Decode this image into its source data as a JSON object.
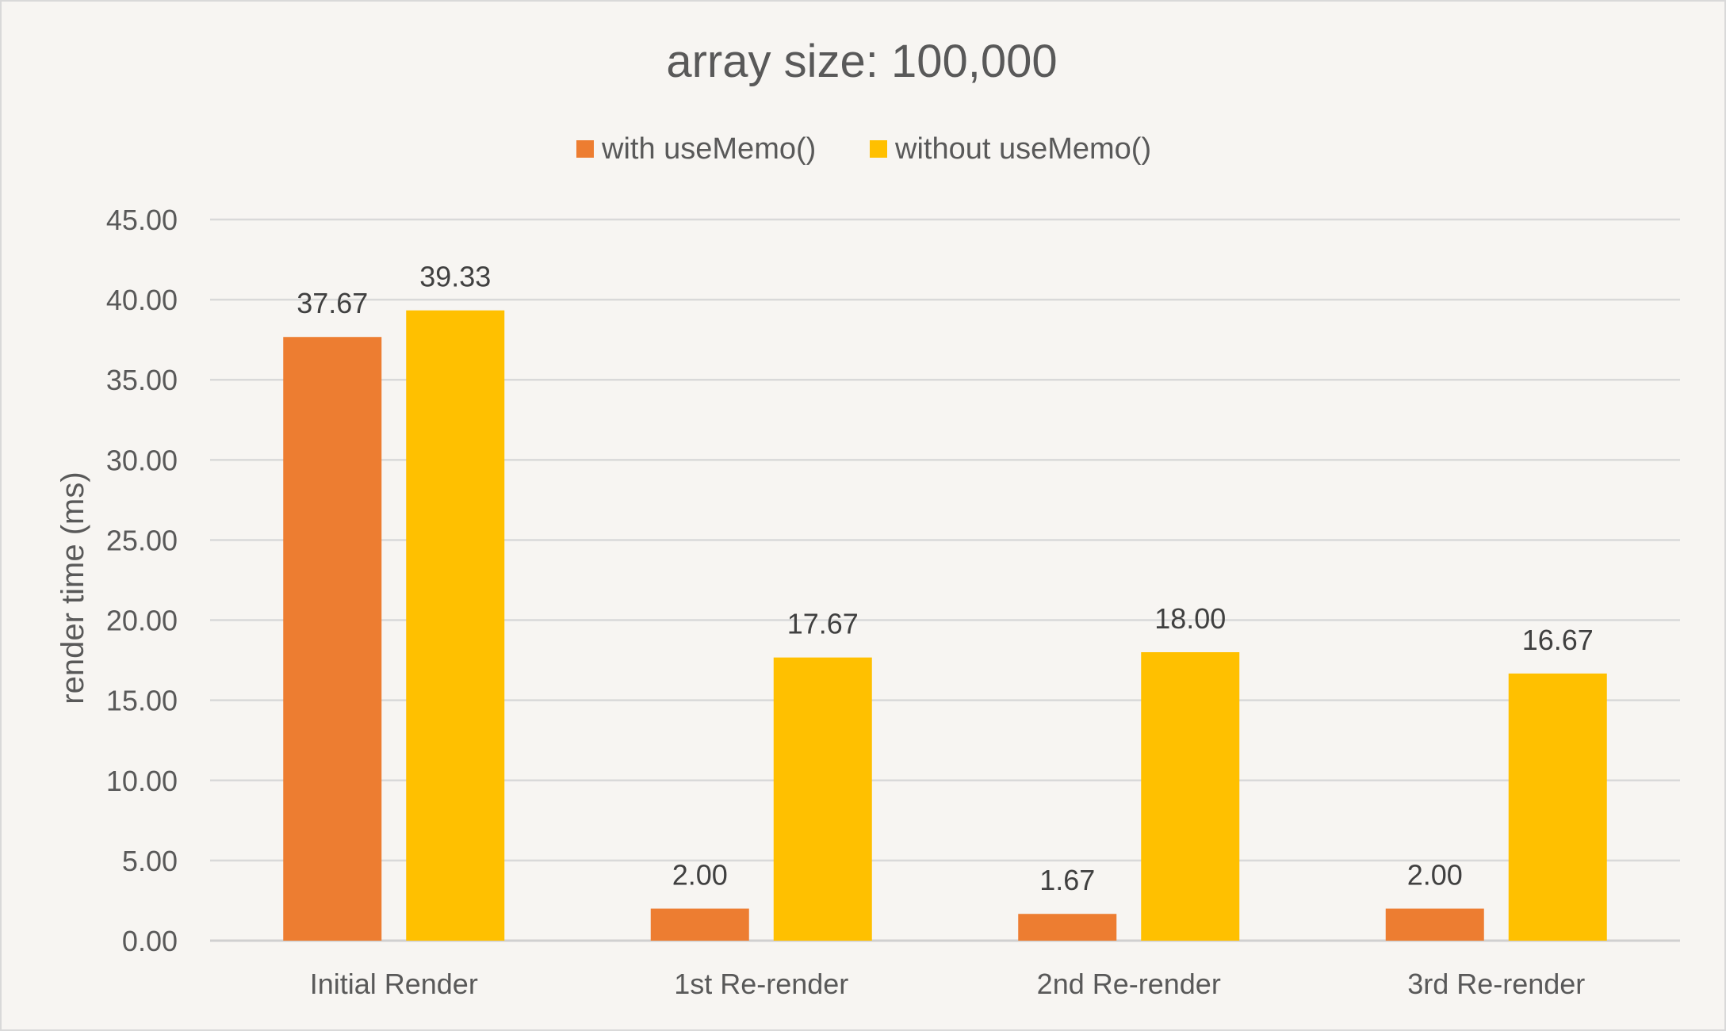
{
  "chart_data": {
    "type": "bar",
    "title": "array size: 100,000",
    "ylabel": "render time (ms)",
    "xlabel": "",
    "categories": [
      "Initial Render",
      "1st Re-render",
      "2nd Re-render",
      "3rd Re-render"
    ],
    "series": [
      {
        "name": "with useMemo()",
        "color": "#ed7d31",
        "values": [
          37.67,
          2.0,
          1.67,
          2.0
        ],
        "labels": [
          "37.67",
          "2.00",
          "1.67",
          "2.00"
        ]
      },
      {
        "name": "without useMemo()",
        "color": "#ffc000",
        "values": [
          39.33,
          17.67,
          18.0,
          16.67
        ],
        "labels": [
          "39.33",
          "17.67",
          "18.00",
          "16.67"
        ]
      }
    ],
    "ylim": [
      0,
      45
    ],
    "yticks": [
      "0.00",
      "5.00",
      "10.00",
      "15.00",
      "20.00",
      "25.00",
      "30.00",
      "35.00",
      "40.00",
      "45.00"
    ],
    "grid": true,
    "legend_position": "top"
  }
}
